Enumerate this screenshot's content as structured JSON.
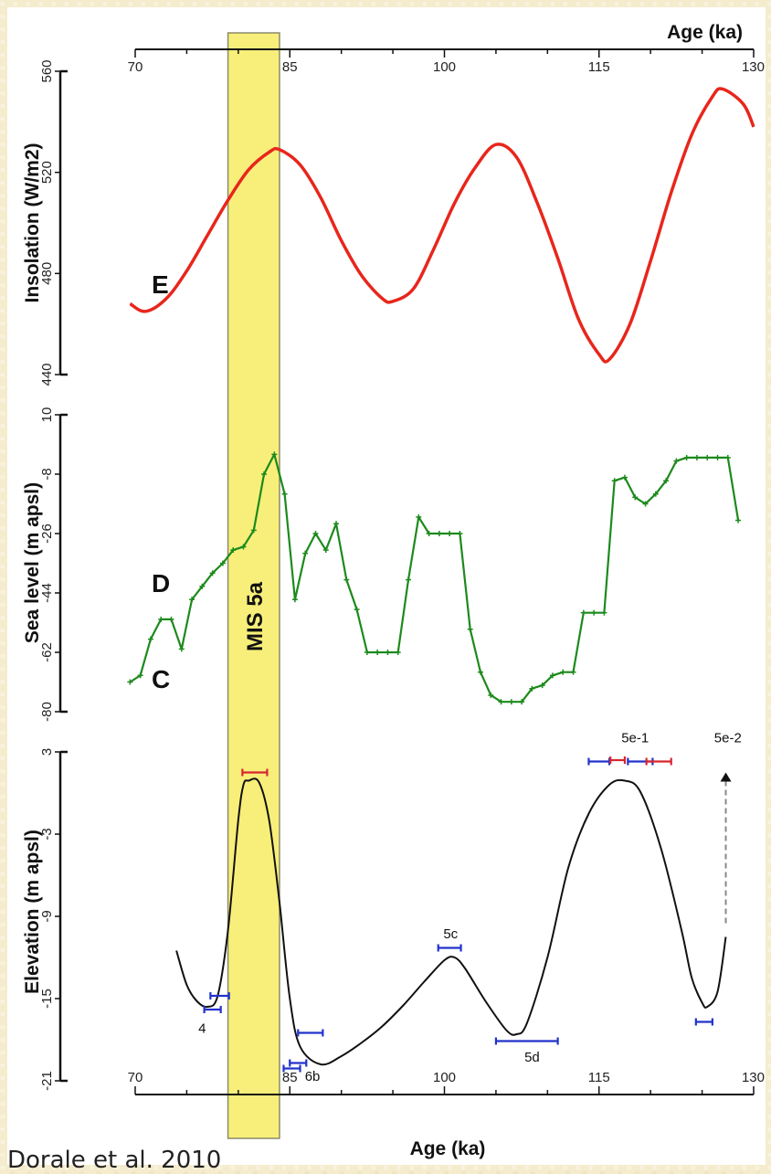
{
  "credit": "Dorale et al. 2010",
  "highlight": {
    "label": "MIS 5a",
    "from": 79,
    "to": 84,
    "color": "#f8ef7a"
  },
  "chart_data": {
    "type": "line",
    "x_axis": {
      "label": "Age (ka)",
      "range": [
        70,
        130
      ],
      "ticks": [
        70,
        85,
        100,
        115,
        130
      ]
    },
    "panels": [
      {
        "letter": "E",
        "ylabel": "Insolation (W/m2)",
        "ylim": [
          440,
          560
        ],
        "yticks": [
          440,
          480,
          520,
          560
        ],
        "color": "#e8261c",
        "series": {
          "x": [
            69.5,
            71,
            73,
            75,
            77,
            79,
            81,
            83,
            84,
            86,
            88,
            90,
            92,
            94,
            95,
            97,
            99,
            101,
            103,
            105,
            107,
            109,
            111,
            113,
            115,
            116,
            118,
            120,
            122,
            124,
            126,
            127,
            129,
            130
          ],
          "y": [
            468,
            465,
            470,
            481,
            495,
            509,
            521,
            528,
            529,
            523,
            510,
            493,
            479,
            470,
            469,
            474,
            490,
            508,
            522,
            531,
            526,
            508,
            486,
            462,
            448,
            446,
            460,
            485,
            512,
            535,
            550,
            553,
            547,
            538
          ]
        }
      },
      {
        "letter": "D",
        "ylabel": "Sea level (m apsl)",
        "ylim": [
          -80,
          10
        ],
        "yticks": [
          -80,
          -62,
          -44,
          -26,
          -8,
          10
        ],
        "color": "#1c8a1c",
        "series": {
          "x": [
            69.5,
            70.5,
            71.5,
            72.5,
            73.5,
            74.5,
            75.5,
            76.5,
            77.5,
            78.5,
            79.5,
            80.5,
            81.5,
            82.5,
            83.5,
            84.5,
            85.5,
            86.5,
            87.5,
            88.5,
            89.5,
            90.5,
            91.5,
            92.5,
            93.5,
            94.5,
            95.5,
            96.5,
            97.5,
            98.5,
            99.5,
            100.5,
            101.5,
            102.5,
            103.5,
            104.5,
            105.5,
            106.5,
            107.5,
            108.5,
            109.5,
            110.5,
            111.5,
            112.5,
            113.5,
            114.5,
            115.5,
            116.5,
            117.5,
            118.5,
            119.5,
            120.5,
            121.5,
            122.5,
            123.5,
            124.5,
            125.5,
            126.5,
            127.5,
            128.5
          ],
          "y": [
            -71,
            -69,
            -58,
            -52,
            -52,
            -61,
            -46,
            -42,
            -38,
            -35,
            -31,
            -30,
            -25,
            -8,
            -2,
            -14,
            -46,
            -32,
            -26,
            -31,
            -23,
            -40,
            -49,
            -62,
            -62,
            -62,
            -62,
            -40,
            -21,
            -26,
            -26,
            -26,
            -26,
            -55,
            -68,
            -75,
            -77,
            -77,
            -77,
            -73,
            -72,
            -69,
            -68,
            -68,
            -50,
            -50,
            -50,
            -10,
            -9,
            -15,
            -17,
            -14,
            -10,
            -4,
            -3,
            -3,
            -3,
            -3,
            -3,
            -22
          ]
        }
      },
      {
        "letter": "C",
        "ylabel": "Elevation (m apsl)",
        "ylim": [
          -21,
          3
        ],
        "yticks": [
          -21,
          -15,
          -9,
          -3,
          3
        ],
        "color": "#111111",
        "series": {
          "x": [
            74,
            75,
            76,
            77,
            78,
            79,
            80,
            80.5,
            81,
            82,
            83,
            84,
            85,
            86,
            88,
            90,
            92,
            94,
            96,
            98,
            100,
            101,
            102,
            104,
            106,
            107,
            108,
            110,
            112,
            114,
            116,
            117.5,
            119,
            121,
            123,
            124,
            125,
            125.5,
            126.5,
            127.3
          ],
          "y": [
            -11.5,
            -14,
            -15.2,
            -15.6,
            -14.8,
            -10,
            -2,
            0.6,
            0.9,
            0.8,
            -2,
            -8,
            -15,
            -18.5,
            -19.8,
            -19.2,
            -18.2,
            -17,
            -15.5,
            -13.8,
            -12.2,
            -12.0,
            -12.8,
            -15.2,
            -17.3,
            -17.6,
            -16.8,
            -12,
            -5.5,
            -1.5,
            0.6,
            0.9,
            0.1,
            -4,
            -10,
            -13.5,
            -15.3,
            -15.6,
            -14.5,
            -10.5
          ]
        },
        "error_bars": [
          {
            "x": 77.5,
            "xerr": 0.8,
            "y": -15.8,
            "color": "#2233cc"
          },
          {
            "x": 78.2,
            "xerr": 0.9,
            "y": -14.8,
            "color": "#2233cc"
          },
          {
            "x": 81.6,
            "xerr": 1.2,
            "y": 1.5,
            "color": "#d8262f"
          },
          {
            "x": 87,
            "xerr": 1.2,
            "y": -17.5,
            "color": "#2233cc"
          },
          {
            "x": 85.2,
            "xerr": 0.8,
            "y": -20.1,
            "color": "#2233cc"
          },
          {
            "x": 85.8,
            "xerr": 0.8,
            "y": -19.7,
            "color": "#2233cc"
          },
          {
            "x": 100.5,
            "xerr": 1.1,
            "y": -11.3,
            "color": "#2233cc"
          },
          {
            "x": 108,
            "xerr": 3.0,
            "y": -18.1,
            "color": "#2233cc"
          },
          {
            "x": 115,
            "xerr": 1.0,
            "y": 2.3,
            "color": "#2233cc"
          },
          {
            "x": 116.8,
            "xerr": 0.7,
            "y": 2.4,
            "color": "#d8262f"
          },
          {
            "x": 119,
            "xerr": 1.2,
            "y": 2.3,
            "color": "#2233cc"
          },
          {
            "x": 120.8,
            "xerr": 1.2,
            "y": 2.3,
            "color": "#d8262f"
          },
          {
            "x": 125.2,
            "xerr": 0.8,
            "y": -16.7,
            "color": "#2233cc"
          }
        ],
        "arrow": {
          "x": 127.3,
          "from_y": -9.5,
          "to_y": 1.5
        },
        "annotations": [
          {
            "text": "4",
            "x": 76.5,
            "y": -17.5
          },
          {
            "text": "6b",
            "x": 87.2,
            "y": -21
          },
          {
            "text": "5c",
            "x": 100.6,
            "y": -10.6
          },
          {
            "text": "5d",
            "x": 108.5,
            "y": -19.6
          },
          {
            "text": "5e-1",
            "x": 118.5,
            "y": 3.7
          },
          {
            "text": "5e-2",
            "x": 127.5,
            "y": 3.7
          }
        ]
      }
    ]
  }
}
